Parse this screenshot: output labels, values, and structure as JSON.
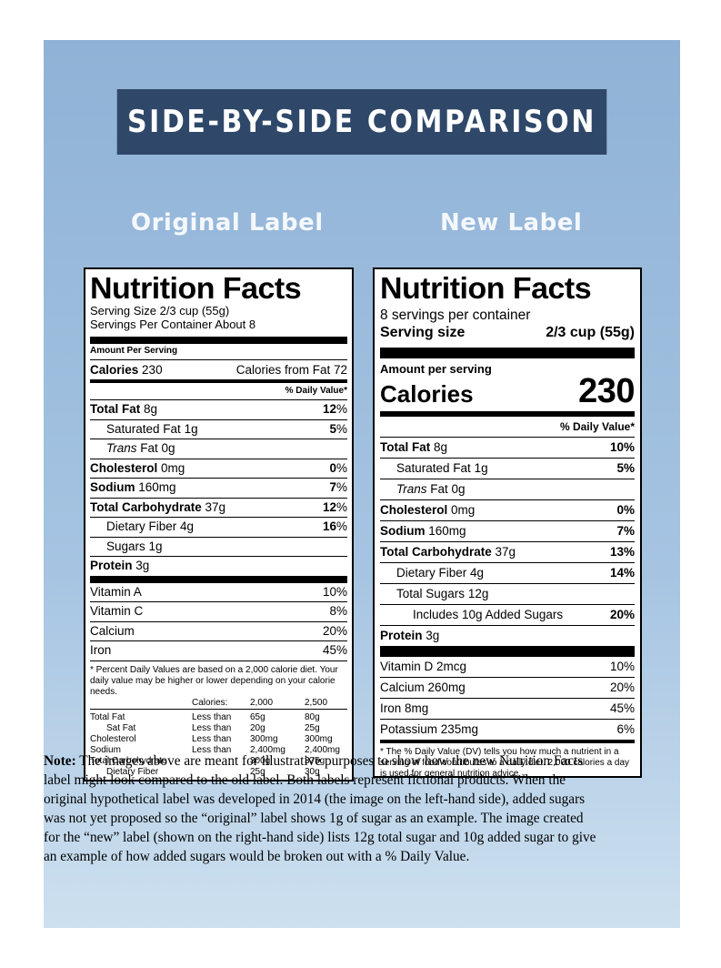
{
  "banner": "SIDE-BY-SIDE COMPARISON",
  "headings": {
    "original": "Original Label",
    "new": "New Label"
  },
  "original": {
    "title": "Nutrition Facts",
    "serving_size": "Serving Size 2/3 cup (55g)",
    "servings_per_container": "Servings Per Container About 8",
    "amount_per_serving": "Amount Per Serving",
    "calories_label": "Calories",
    "calories_value": "230",
    "calories_from_fat": "Calories from Fat 72",
    "daily_value_header": "% Daily Value*",
    "nutrients": [
      {
        "name": "Total Fat",
        "amount": "8g",
        "pct": "12",
        "unit": "%"
      },
      {
        "name": "Saturated Fat",
        "amount": "1g",
        "pct": "5",
        "unit": "%"
      },
      {
        "name": "Trans",
        "amount": "Fat 0g"
      },
      {
        "name": "Cholesterol",
        "amount": "0mg",
        "pct": "0",
        "unit": "%"
      },
      {
        "name": "Sodium",
        "amount": "160mg",
        "pct": "7",
        "unit": "%"
      },
      {
        "name": "Total Carbohydrate",
        "amount": "37g",
        "pct": "12",
        "unit": "%"
      },
      {
        "name": "Dietary Fiber",
        "amount": "4g",
        "pct": "16",
        "unit": "%"
      },
      {
        "name": "Sugars",
        "amount": "1g"
      },
      {
        "name": "Protein",
        "amount": "3g"
      }
    ],
    "vitamins": [
      {
        "name": "Vitamin A",
        "pct": "10%"
      },
      {
        "name": "Vitamin C",
        "pct": "8%"
      },
      {
        "name": "Calcium",
        "pct": "20%"
      },
      {
        "name": "Iron",
        "pct": "45%"
      }
    ],
    "footnote": "* Percent Daily Values are based on a 2,000 calorie diet. Your daily value may be higher or lower depending on your calorie needs.",
    "table_header": [
      "Calories:",
      "2,000",
      "2,500"
    ],
    "table_rows": [
      [
        "Total Fat",
        "Less than",
        "65g",
        "80g"
      ],
      [
        "Sat Fat",
        "Less than",
        "20g",
        "25g"
      ],
      [
        "Cholesterol",
        "Less than",
        "300mg",
        "300mg"
      ],
      [
        "Sodium",
        "Less than",
        "2,400mg",
        "2,400mg"
      ],
      [
        "Total Carbohydrate",
        "",
        "300g",
        "375g"
      ],
      [
        "Dietary Fiber",
        "",
        "25g",
        "30g"
      ]
    ]
  },
  "new": {
    "title": "Nutrition Facts",
    "servings": "8 servings per container",
    "serving_size_label": "Serving size",
    "serving_size_value": "2/3 cup (55g)",
    "amount_per_serving": "Amount per serving",
    "calories_label": "Calories",
    "calories_value": "230",
    "daily_value_header": "% Daily Value*",
    "nutrients": [
      {
        "name": "Total Fat",
        "amount": "8g",
        "pct": "10%"
      },
      {
        "name": "Saturated Fat",
        "amount": "1g",
        "pct": "5%"
      },
      {
        "name": "Trans",
        "amount": "Fat 0g"
      },
      {
        "name": "Cholesterol",
        "amount": "0mg",
        "pct": "0%"
      },
      {
        "name": "Sodium",
        "amount": "160mg",
        "pct": "7%"
      },
      {
        "name": "Total Carbohydrate",
        "amount": "37g",
        "pct": "13%"
      },
      {
        "name": "Dietary Fiber",
        "amount": "4g",
        "pct": "14%"
      },
      {
        "name": "Total Sugars",
        "amount": "12g"
      },
      {
        "name": "Includes 10g Added Sugars",
        "pct": "20%"
      },
      {
        "name": "Protein",
        "amount": "3g"
      }
    ],
    "vitamins": [
      {
        "name": "Vitamin D 2mcg",
        "pct": "10%"
      },
      {
        "name": "Calcium 260mg",
        "pct": "20%"
      },
      {
        "name": "Iron 8mg",
        "pct": "45%"
      },
      {
        "name": "Potassium 235mg",
        "pct": "6%"
      }
    ],
    "footnote": "* The % Daily Value (DV) tells you how much a nutrient in a serving of food contributes to a daily diet. 2,000 calories a day is used for general nutrition advice."
  },
  "note": {
    "label": "Note:",
    "text": " The images above are meant for illustrative purposes to show how the new Nutrition Facts label might look compared to the old label. Both labels represent fictional products. When the original hypothetical label was developed in 2014 (the image on the left-hand side), added sugars was not yet proposed so the “original” label shows 1g of sugar as an example. The image created for the “new” label (shown on the right-hand side) lists 12g total sugar and 10g added sugar to give an example of how added sugars would be broken out with a % Daily Value."
  }
}
